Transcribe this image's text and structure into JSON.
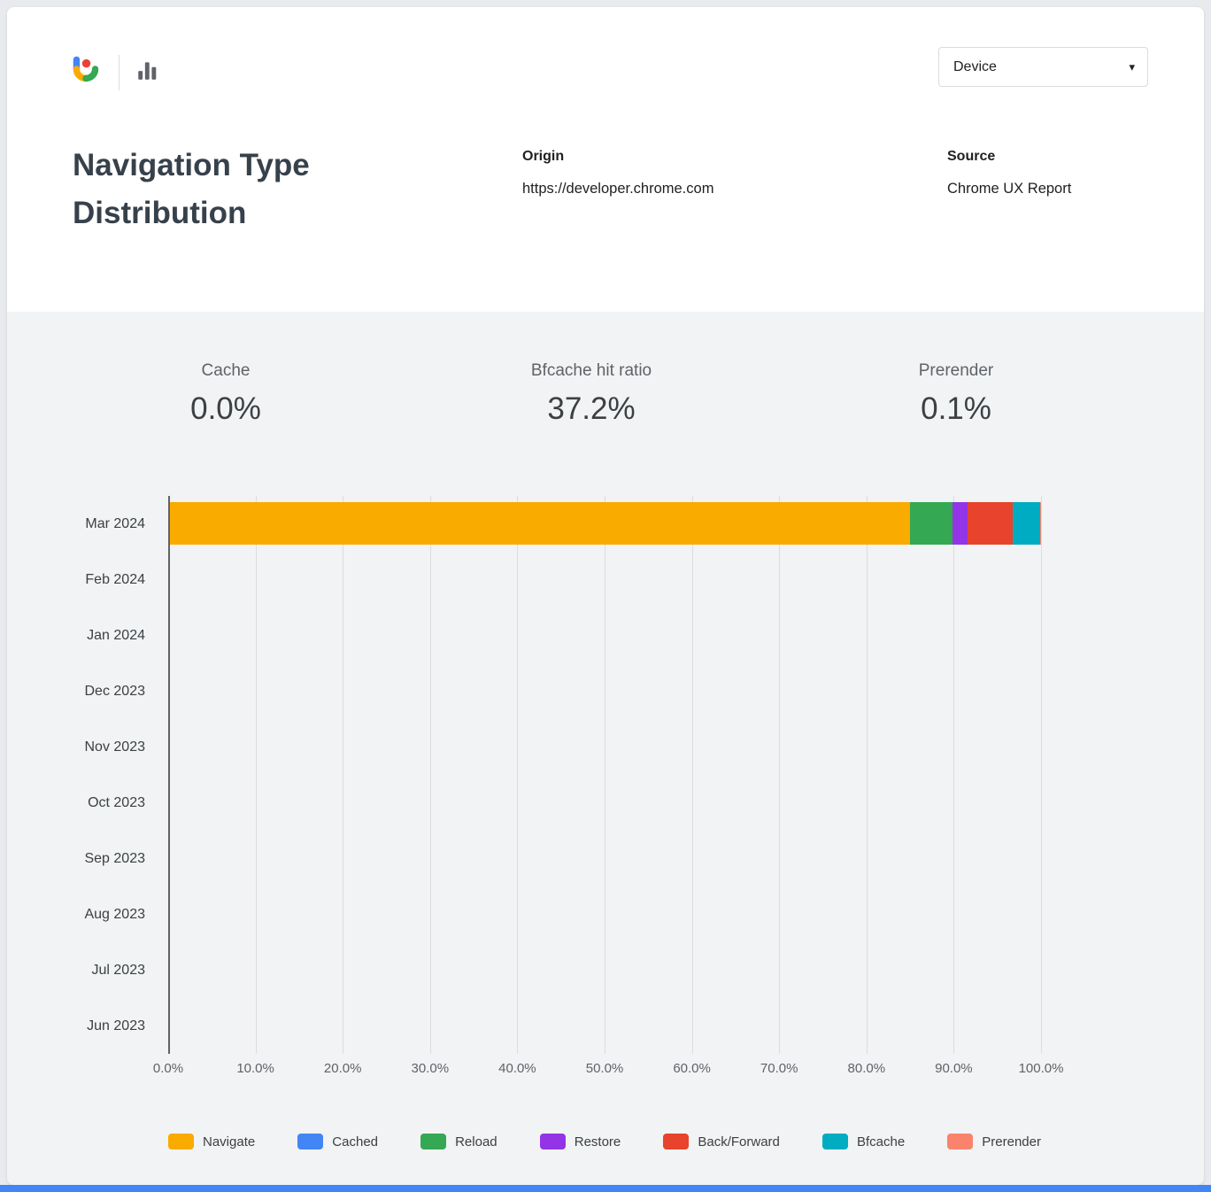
{
  "header": {
    "device_dropdown": {
      "value": "Device",
      "caret": "▾"
    }
  },
  "title": "Navigation Type Distribution",
  "meta": {
    "origin_label": "Origin",
    "origin_value": "https://developer.chrome.com",
    "source_label": "Source",
    "source_value": "Chrome UX Report"
  },
  "stats": [
    {
      "label": "Cache",
      "value": "0.0%"
    },
    {
      "label": "Bfcache hit ratio",
      "value": "37.2%"
    },
    {
      "label": "Prerender",
      "value": "0.1%"
    }
  ],
  "chart_data": {
    "type": "bar",
    "variant": "horizontal-stacked",
    "title": "Navigation Type Distribution",
    "categories": [
      "Mar 2024",
      "Feb 2024",
      "Jan 2024",
      "Dec 2023",
      "Nov 2023",
      "Oct 2023",
      "Sep 2023",
      "Aug 2023",
      "Jul 2023",
      "Jun 2023"
    ],
    "series": [
      {
        "name": "Navigate",
        "color": "#F9AB00",
        "values": [
          85.0,
          0,
          0,
          0,
          0,
          0,
          0,
          0,
          0,
          0
        ]
      },
      {
        "name": "Cached",
        "color": "#4285F4",
        "values": [
          0.0,
          0,
          0,
          0,
          0,
          0,
          0,
          0,
          0,
          0
        ]
      },
      {
        "name": "Reload",
        "color": "#34A853",
        "values": [
          4.9,
          0,
          0,
          0,
          0,
          0,
          0,
          0,
          0,
          0
        ]
      },
      {
        "name": "Restore",
        "color": "#9334E6",
        "values": [
          1.7,
          0,
          0,
          0,
          0,
          0,
          0,
          0,
          0,
          0
        ]
      },
      {
        "name": "Back/Forward",
        "color": "#E8432C",
        "values": [
          5.2,
          0,
          0,
          0,
          0,
          0,
          0,
          0,
          0,
          0
        ]
      },
      {
        "name": "Bfcache",
        "color": "#00ACC1",
        "values": [
          3.1,
          0,
          0,
          0,
          0,
          0,
          0,
          0,
          0,
          0
        ]
      },
      {
        "name": "Prerender",
        "color": "#F9836C",
        "values": [
          0.1,
          0,
          0,
          0,
          0,
          0,
          0,
          0,
          0,
          0
        ]
      }
    ],
    "xlim": [
      0,
      100
    ],
    "xticks": [
      "0.0%",
      "10.0%",
      "20.0%",
      "30.0%",
      "40.0%",
      "50.0%",
      "60.0%",
      "70.0%",
      "80.0%",
      "90.0%",
      "100.0%"
    ],
    "grid": true,
    "legend_position": "bottom"
  },
  "colors": {
    "body_background": "#F1F3F4",
    "accent_bar": "#4285F4",
    "grid_line": "#DADCE0",
    "axis_line": "#5F6368",
    "logo_blue": "#4285F4",
    "logo_yellow": "#F9AB00",
    "logo_green": "#34A853",
    "logo_red": "#EA4335"
  }
}
